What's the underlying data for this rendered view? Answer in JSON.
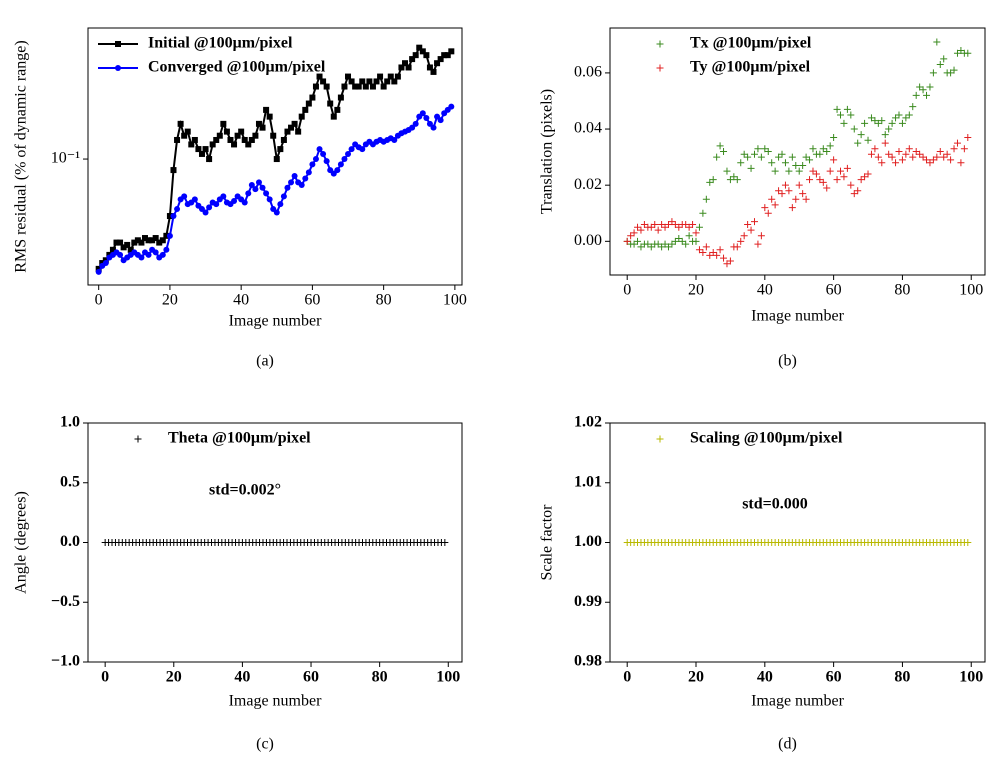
{
  "chart_data": [
    {
      "type": "line",
      "caption": "(a)",
      "xlabel": "Image number",
      "ylabel": "RMS residual (% of dynamic range)",
      "yscale": "log",
      "legend": "upper left",
      "x": [
        0,
        1,
        2,
        3,
        4,
        5,
        6,
        7,
        8,
        9,
        10,
        11,
        12,
        13,
        14,
        15,
        16,
        17,
        18,
        19,
        20,
        21,
        22,
        23,
        24,
        25,
        26,
        27,
        28,
        29,
        30,
        31,
        32,
        33,
        34,
        35,
        36,
        37,
        38,
        39,
        40,
        41,
        42,
        43,
        44,
        45,
        46,
        47,
        48,
        49,
        50,
        51,
        52,
        53,
        54,
        55,
        56,
        57,
        58,
        59,
        60,
        61,
        62,
        63,
        64,
        65,
        66,
        67,
        68,
        69,
        70,
        71,
        72,
        73,
        74,
        75,
        76,
        77,
        78,
        79,
        80,
        81,
        82,
        83,
        84,
        85,
        86,
        87,
        88,
        89,
        90,
        91,
        92,
        93,
        94,
        95,
        96,
        97,
        98,
        99
      ],
      "series": [
        {
          "name": "Initial @100μm/pixel",
          "color": "#000000",
          "marker": "square",
          "values": [
            0.035,
            0.037,
            0.038,
            0.04,
            0.042,
            0.045,
            0.045,
            0.043,
            0.044,
            0.042,
            0.045,
            0.046,
            0.045,
            0.047,
            0.046,
            0.046,
            0.047,
            0.045,
            0.046,
            0.048,
            0.058,
            0.09,
            0.12,
            0.14,
            0.125,
            0.13,
            0.115,
            0.12,
            0.11,
            0.105,
            0.11,
            0.1,
            0.115,
            0.12,
            0.125,
            0.14,
            0.13,
            0.12,
            0.115,
            0.125,
            0.13,
            0.12,
            0.115,
            0.12,
            0.125,
            0.14,
            0.135,
            0.16,
            0.15,
            0.125,
            0.1,
            0.11,
            0.12,
            0.13,
            0.135,
            0.14,
            0.13,
            0.15,
            0.16,
            0.17,
            0.18,
            0.2,
            0.22,
            0.21,
            0.2,
            0.17,
            0.15,
            0.16,
            0.18,
            0.2,
            0.22,
            0.21,
            0.2,
            0.2,
            0.21,
            0.2,
            0.21,
            0.2,
            0.21,
            0.22,
            0.2,
            0.21,
            0.22,
            0.21,
            0.22,
            0.24,
            0.25,
            0.24,
            0.26,
            0.27,
            0.29,
            0.28,
            0.27,
            0.24,
            0.23,
            0.25,
            0.26,
            0.27,
            0.27,
            0.28
          ]
        },
        {
          "name": "Converged @100μm/pixel",
          "color": "#0000ff",
          "marker": "circle",
          "values": [
            0.034,
            0.036,
            0.037,
            0.039,
            0.04,
            0.041,
            0.04,
            0.038,
            0.039,
            0.04,
            0.041,
            0.04,
            0.039,
            0.041,
            0.04,
            0.042,
            0.041,
            0.039,
            0.04,
            0.042,
            0.048,
            0.058,
            0.062,
            0.068,
            0.07,
            0.065,
            0.066,
            0.068,
            0.064,
            0.062,
            0.06,
            0.063,
            0.066,
            0.065,
            0.068,
            0.07,
            0.066,
            0.065,
            0.067,
            0.07,
            0.068,
            0.066,
            0.072,
            0.078,
            0.075,
            0.08,
            0.076,
            0.072,
            0.068,
            0.062,
            0.06,
            0.065,
            0.07,
            0.076,
            0.08,
            0.085,
            0.08,
            0.078,
            0.083,
            0.088,
            0.095,
            0.1,
            0.11,
            0.105,
            0.098,
            0.09,
            0.087,
            0.09,
            0.095,
            0.1,
            0.105,
            0.11,
            0.115,
            0.112,
            0.11,
            0.115,
            0.118,
            0.115,
            0.118,
            0.12,
            0.118,
            0.12,
            0.122,
            0.12,
            0.125,
            0.128,
            0.13,
            0.132,
            0.135,
            0.14,
            0.15,
            0.155,
            0.148,
            0.14,
            0.135,
            0.15,
            0.145,
            0.155,
            0.16,
            0.165
          ]
        }
      ],
      "xlim": [
        -3,
        102
      ],
      "xticks": [
        0,
        20,
        40,
        60,
        80,
        100
      ],
      "ylim": [
        0.03,
        0.35
      ],
      "yticks": [
        {
          "value": 0.1,
          "label": "10⁻¹"
        }
      ]
    },
    {
      "type": "scatter",
      "caption": "(b)",
      "xlabel": "Image number",
      "ylabel": "Translation (pixels)",
      "legend": "upper left",
      "x": [
        0,
        1,
        2,
        3,
        4,
        5,
        6,
        7,
        8,
        9,
        10,
        11,
        12,
        13,
        14,
        15,
        16,
        17,
        18,
        19,
        20,
        21,
        22,
        23,
        24,
        25,
        26,
        27,
        28,
        29,
        30,
        31,
        32,
        33,
        34,
        35,
        36,
        37,
        38,
        39,
        40,
        41,
        42,
        43,
        44,
        45,
        46,
        47,
        48,
        49,
        50,
        51,
        52,
        53,
        54,
        55,
        56,
        57,
        58,
        59,
        60,
        61,
        62,
        63,
        64,
        65,
        66,
        67,
        68,
        69,
        70,
        71,
        72,
        73,
        74,
        75,
        76,
        77,
        78,
        79,
        80,
        81,
        82,
        83,
        84,
        85,
        86,
        87,
        88,
        89,
        90,
        91,
        92,
        93,
        94,
        95,
        96,
        97,
        98,
        99
      ],
      "series": [
        {
          "name": "Tx @100μm/pixel",
          "color": "#3a8a1e",
          "marker": "plus",
          "values": [
            0,
            -0.001,
            -0.001,
            0,
            -0.002,
            -0.001,
            -0.001,
            -0.002,
            -0.001,
            -0.001,
            -0.002,
            -0.001,
            -0.002,
            -0.001,
            0,
            0.001,
            0,
            -0.001,
            0.002,
            0,
            0,
            0.005,
            0.01,
            0.015,
            0.021,
            0.022,
            0.03,
            0.034,
            0.032,
            0.025,
            0.022,
            0.023,
            0.022,
            0.028,
            0.031,
            0.03,
            0.026,
            0.031,
            0.033,
            0.03,
            0.033,
            0.032,
            0.028,
            0.025,
            0.03,
            0.031,
            0.028,
            0.025,
            0.03,
            0.027,
            0.025,
            0.027,
            0.03,
            0.029,
            0.033,
            0.031,
            0.031,
            0.033,
            0.032,
            0.034,
            0.037,
            0.047,
            0.045,
            0.042,
            0.047,
            0.045,
            0.04,
            0.035,
            0.038,
            0.042,
            0.036,
            0.044,
            0.043,
            0.042,
            0.043,
            0.038,
            0.04,
            0.042,
            0.044,
            0.045,
            0.042,
            0.044,
            0.045,
            0.048,
            0.052,
            0.055,
            0.054,
            0.052,
            0.055,
            0.06,
            0.071,
            0.063,
            0.065,
            0.06,
            0.06,
            0.061,
            0.067,
            0.068,
            0.067,
            0.067
          ]
        },
        {
          "name": "Ty @100μm/pixel",
          "color": "#e02020",
          "marker": "plus",
          "values": [
            0,
            0.002,
            0.003,
            0.005,
            0.004,
            0.006,
            0.005,
            0.005,
            0.006,
            0.004,
            0.006,
            0.005,
            0.006,
            0.007,
            0.006,
            0.005,
            0.006,
            0.006,
            0.005,
            0.006,
            0.003,
            -0.003,
            -0.004,
            -0.002,
            -0.005,
            -0.004,
            -0.005,
            -0.003,
            -0.006,
            -0.008,
            -0.007,
            -0.002,
            -0.002,
            0,
            0.002,
            0.006,
            0.004,
            0.007,
            -0.001,
            0.002,
            0.012,
            0.01,
            0.015,
            0.013,
            0.018,
            0.017,
            0.02,
            0.018,
            0.012,
            0.015,
            0.02,
            0.017,
            0.015,
            0.022,
            0.025,
            0.024,
            0.022,
            0.021,
            0.019,
            0.025,
            0.029,
            0.022,
            0.025,
            0.023,
            0.026,
            0.02,
            0.017,
            0.018,
            0.022,
            0.023,
            0.024,
            0.031,
            0.033,
            0.03,
            0.028,
            0.035,
            0.031,
            0.03,
            0.028,
            0.032,
            0.029,
            0.031,
            0.033,
            0.03,
            0.032,
            0.031,
            0.03,
            0.029,
            0.028,
            0.029,
            0.03,
            0.032,
            0.03,
            0.031,
            0.029,
            0.033,
            0.035,
            0.028,
            0.033,
            0.037
          ]
        }
      ],
      "xlim": [
        -5,
        104
      ],
      "xticks": [
        0,
        20,
        40,
        60,
        80,
        100
      ],
      "ylim": [
        -0.012,
        0.076
      ],
      "yticks": [
        {
          "value": 0,
          "label": "0.00"
        },
        0.02,
        0.04,
        0.06
      ]
    },
    {
      "type": "scatter",
      "caption": "(c)",
      "xlabel": "Image number",
      "ylabel": "Angle (degrees)",
      "legend": "upper left",
      "annotation": "std=0.002°",
      "bold_ticks": true,
      "x": [
        0,
        1,
        2,
        3,
        4,
        5,
        6,
        7,
        8,
        9,
        10,
        11,
        12,
        13,
        14,
        15,
        16,
        17,
        18,
        19,
        20,
        21,
        22,
        23,
        24,
        25,
        26,
        27,
        28,
        29,
        30,
        31,
        32,
        33,
        34,
        35,
        36,
        37,
        38,
        39,
        40,
        41,
        42,
        43,
        44,
        45,
        46,
        47,
        48,
        49,
        50,
        51,
        52,
        53,
        54,
        55,
        56,
        57,
        58,
        59,
        60,
        61,
        62,
        63,
        64,
        65,
        66,
        67,
        68,
        69,
        70,
        71,
        72,
        73,
        74,
        75,
        76,
        77,
        78,
        79,
        80,
        81,
        82,
        83,
        84,
        85,
        86,
        87,
        88,
        89,
        90,
        91,
        92,
        93,
        94,
        95,
        96,
        97,
        98,
        99
      ],
      "series": [
        {
          "name": "Theta @100μm/pixel",
          "color": "#000000",
          "marker": "plus",
          "values": [
            0,
            0,
            0,
            0,
            0,
            0,
            0,
            0,
            0,
            0,
            0,
            0,
            0,
            0,
            0,
            0,
            0,
            0,
            0,
            0,
            0,
            0,
            0,
            0,
            0,
            0,
            0,
            0,
            0,
            0,
            0,
            0,
            0,
            0,
            0,
            0,
            0,
            0,
            0,
            0,
            0,
            0,
            0,
            0,
            0,
            0,
            0,
            0,
            0,
            0,
            0,
            0,
            0,
            0,
            0,
            0,
            0,
            0,
            0,
            0,
            0,
            0,
            0,
            0,
            0,
            0,
            0,
            0,
            0,
            0,
            0,
            0,
            0,
            0,
            0,
            0,
            0,
            0,
            0,
            0,
            0,
            0,
            0,
            0,
            0,
            0,
            0,
            0,
            0,
            0,
            0,
            0,
            0,
            0,
            0,
            0,
            0,
            0,
            0,
            0
          ]
        }
      ],
      "xlim": [
        -5,
        104
      ],
      "xticks": [
        0,
        20,
        40,
        60,
        80,
        100
      ],
      "ylim": [
        -1,
        1
      ],
      "yticks": [
        {
          "value": -1,
          "label": "−1.0"
        },
        {
          "value": -0.5,
          "label": "−0.5"
        },
        {
          "value": 0,
          "label": "0.0"
        },
        0.5,
        {
          "value": 1,
          "label": "1.0"
        }
      ]
    },
    {
      "type": "scatter",
      "caption": "(d)",
      "xlabel": "Image number",
      "ylabel": "Scale factor",
      "legend": "upper left",
      "annotation": "std=0.000",
      "bold_ticks": true,
      "x": [
        0,
        1,
        2,
        3,
        4,
        5,
        6,
        7,
        8,
        9,
        10,
        11,
        12,
        13,
        14,
        15,
        16,
        17,
        18,
        19,
        20,
        21,
        22,
        23,
        24,
        25,
        26,
        27,
        28,
        29,
        30,
        31,
        32,
        33,
        34,
        35,
        36,
        37,
        38,
        39,
        40,
        41,
        42,
        43,
        44,
        45,
        46,
        47,
        48,
        49,
        50,
        51,
        52,
        53,
        54,
        55,
        56,
        57,
        58,
        59,
        60,
        61,
        62,
        63,
        64,
        65,
        66,
        67,
        68,
        69,
        70,
        71,
        72,
        73,
        74,
        75,
        76,
        77,
        78,
        79,
        80,
        81,
        82,
        83,
        84,
        85,
        86,
        87,
        88,
        89,
        90,
        91,
        92,
        93,
        94,
        95,
        96,
        97,
        98,
        99
      ],
      "series": [
        {
          "name": "Scaling @100μm/pixel",
          "color": "#b8b800",
          "marker": "plus",
          "values": [
            1,
            1,
            1,
            1,
            1,
            1,
            1,
            1,
            1,
            1,
            1,
            1,
            1,
            1,
            1,
            1,
            1,
            1,
            1,
            1,
            1,
            1,
            1,
            1,
            1,
            1,
            1,
            1,
            1,
            1,
            1,
            1,
            1,
            1,
            1,
            1,
            1,
            1,
            1,
            1,
            1,
            1,
            1,
            1,
            1,
            1,
            1,
            1,
            1,
            1,
            1,
            1,
            1,
            1,
            1,
            1,
            1,
            1,
            1,
            1,
            1,
            1,
            1,
            1,
            1,
            1,
            1,
            1,
            1,
            1,
            1,
            1,
            1,
            1,
            1,
            1,
            1,
            1,
            1,
            1,
            1,
            1,
            1,
            1,
            1,
            1,
            1,
            1,
            1,
            1,
            1,
            1,
            1,
            1,
            1,
            1,
            1,
            1,
            1,
            1
          ]
        }
      ],
      "xlim": [
        -5,
        104
      ],
      "xticks": [
        0,
        20,
        40,
        60,
        80,
        100
      ],
      "ylim": [
        0.98,
        1.02
      ],
      "yticks": [
        0.98,
        0.99,
        {
          "value": 1,
          "label": "1.00"
        },
        1.01,
        1.02
      ]
    }
  ]
}
